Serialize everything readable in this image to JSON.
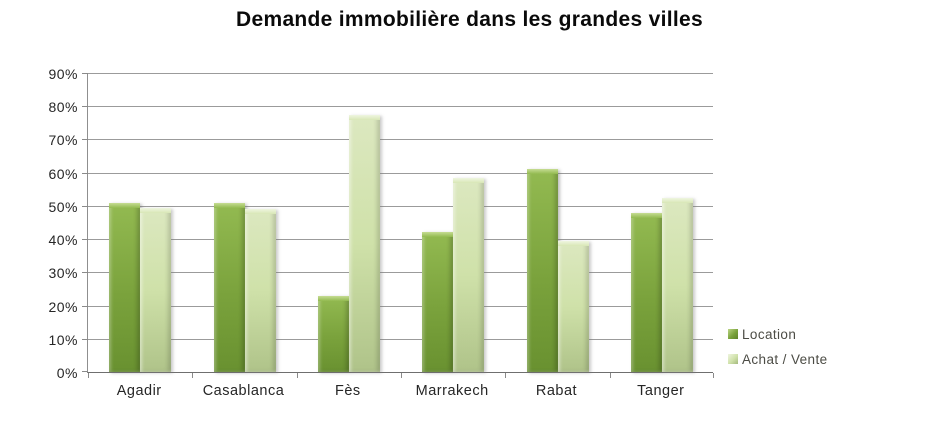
{
  "chart_data": {
    "type": "bar",
    "title": "Demande immobilière dans les grandes villes",
    "categories": [
      "Agadir",
      "Casablanca",
      "Fès",
      "Marrakech",
      "Rabat",
      "Tanger"
    ],
    "series": [
      {
        "name": "Location",
        "color": "#7aa23c",
        "values": [
          51,
          51,
          23,
          42,
          61,
          48
        ]
      },
      {
        "name": "Achat / Vente",
        "color": "#cfe1a9",
        "values": [
          49.5,
          49,
          77.5,
          58.5,
          39.5,
          52.5
        ]
      }
    ],
    "ylim": [
      0,
      90
    ],
    "ytick_step": 10,
    "ytick_labels": [
      "0%",
      "10%",
      "20%",
      "30%",
      "40%",
      "50%",
      "60%",
      "70%",
      "80%",
      "90%"
    ],
    "grid": "horizontal",
    "legend_position": "right",
    "xlabel": "",
    "ylabel": ""
  },
  "colors": {
    "background": "#ffffff",
    "gridline": "#9b9b9b",
    "axis": "#6f6f6f",
    "title_text": "#0a0a0a",
    "tick_text": "#262626",
    "legend_text": "#4c4c45"
  }
}
